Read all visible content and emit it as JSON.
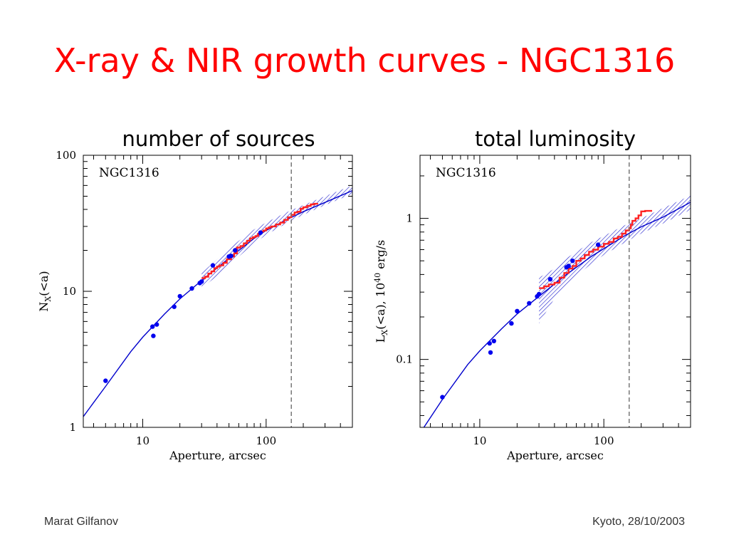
{
  "title": "X-ray & NIR growth curves - NGC1316",
  "footer": {
    "author": "Marat Gilfanov",
    "venue_date": "Kyoto, 28/10/2003"
  },
  "chart_data": [
    {
      "type": "scatter",
      "title": "number of sources",
      "annotation": "NGC1316",
      "xlabel": "Aperture, arcsec",
      "ylabel": "N",
      "ylabel_sub": "X",
      "ylabel_tail": "(<a)",
      "x_scale": "log",
      "y_scale": "log",
      "xlim": [
        3.3,
        500
      ],
      "ylim": [
        1,
        100
      ],
      "xticks": [
        10,
        100
      ],
      "xtick_labels": [
        "10",
        "100"
      ],
      "yticks": [
        1,
        10,
        100
      ],
      "ytick_labels": [
        "1",
        "10",
        "100"
      ],
      "vline": 160,
      "colors": {
        "points": "#0000ee",
        "model": "#0000cc",
        "step": "#ff2222",
        "band": "#1a1acc",
        "vline": "#777777"
      },
      "points": [
        [
          5,
          2.2
        ],
        [
          12,
          5.5
        ],
        [
          12.2,
          4.7
        ],
        [
          13,
          5.7
        ],
        [
          18,
          7.7
        ],
        [
          20,
          9.2
        ],
        [
          25,
          10.5
        ],
        [
          29,
          11.5
        ],
        [
          30,
          11.8
        ],
        [
          37,
          15.5
        ],
        [
          50,
          18
        ],
        [
          52,
          18.2
        ],
        [
          56,
          20
        ],
        [
          90,
          27
        ]
      ],
      "model_curve": {
        "x": [
          3.3,
          5,
          8,
          10,
          15,
          20,
          30,
          50,
          80,
          100,
          150,
          200,
          300,
          500
        ],
        "y": [
          1.2,
          2.0,
          3.6,
          4.6,
          6.8,
          8.8,
          12,
          17.5,
          24.5,
          28,
          34,
          38.5,
          45,
          55
        ]
      },
      "step_curve": {
        "x": [
          30,
          32,
          34,
          36,
          38,
          40,
          42,
          45,
          48,
          52,
          55,
          58,
          62,
          66,
          70,
          74,
          78,
          82,
          86,
          90,
          95,
          100,
          105,
          110,
          120,
          130,
          140,
          150,
          160,
          170,
          180,
          190,
          200,
          215,
          230,
          245,
          260
        ],
        "y": [
          12.5,
          12.8,
          13.5,
          14.0,
          14.8,
          15.2,
          15.5,
          16.2,
          17.2,
          18.0,
          19.0,
          21.0,
          21.5,
          22.5,
          23.5,
          24.5,
          25.0,
          25.5,
          26.5,
          27.5,
          28.0,
          29.0,
          29.5,
          30.0,
          31.0,
          32.0,
          33.5,
          35.0,
          36.5,
          38.0,
          38.5,
          40.5,
          41.5,
          42.5,
          43.5,
          44.0,
          44.5
        ]
      },
      "band": {
        "x": [
          30,
          40,
          50,
          60,
          80,
          100,
          150,
          200,
          300,
          500
        ],
        "y_lo": [
          10.5,
          13,
          15.5,
          18,
          22.5,
          26,
          32,
          36.5,
          43,
          52
        ],
        "y_hi": [
          13.6,
          17.2,
          20.5,
          23.5,
          28.5,
          32,
          38.5,
          43,
          50,
          60
        ]
      }
    },
    {
      "type": "scatter",
      "title": "total luminosity",
      "annotation": "NGC1316",
      "xlabel": "Aperture, arcsec",
      "ylabel": "L",
      "ylabel_sub": "X",
      "ylabel_tail": "(<a), 10",
      "ylabel_sup": "40",
      "ylabel_units": " erg/s",
      "x_scale": "log",
      "y_scale": "log",
      "xlim": [
        3.3,
        500
      ],
      "ylim": [
        0.033,
        2.8
      ],
      "xticks": [
        10,
        100
      ],
      "xtick_labels": [
        "10",
        "100"
      ],
      "yticks": [
        0.1,
        1
      ],
      "ytick_labels": [
        "0.1",
        "1"
      ],
      "vline": 160,
      "colors": {
        "points": "#0000ee",
        "model": "#0000cc",
        "step": "#ff2222",
        "band": "#1a1acc",
        "vline": "#777777"
      },
      "points": [
        [
          5,
          0.054
        ],
        [
          12,
          0.13
        ],
        [
          12.2,
          0.112
        ],
        [
          13,
          0.135
        ],
        [
          18,
          0.18
        ],
        [
          20,
          0.22
        ],
        [
          25,
          0.25
        ],
        [
          29,
          0.28
        ],
        [
          30,
          0.29
        ],
        [
          37,
          0.37
        ],
        [
          50,
          0.45
        ],
        [
          52,
          0.46
        ],
        [
          56,
          0.5
        ],
        [
          90,
          0.65
        ]
      ],
      "model_curve": {
        "x": [
          3.3,
          5,
          8,
          10,
          15,
          20,
          30,
          50,
          80,
          100,
          150,
          200,
          300,
          500
        ],
        "y": [
          0.03,
          0.052,
          0.092,
          0.115,
          0.165,
          0.21,
          0.28,
          0.4,
          0.54,
          0.61,
          0.76,
          0.87,
          1.02,
          1.3
        ]
      },
      "step_curve": {
        "x": [
          30,
          33,
          36,
          40,
          44,
          48,
          52,
          56,
          60,
          65,
          70,
          76,
          82,
          90,
          100,
          110,
          120,
          130,
          140,
          150,
          160,
          165,
          170,
          180,
          190,
          200,
          215,
          230,
          245
        ],
        "y": [
          0.32,
          0.33,
          0.34,
          0.35,
          0.38,
          0.41,
          0.44,
          0.46,
          0.5,
          0.52,
          0.55,
          0.58,
          0.6,
          0.63,
          0.66,
          0.68,
          0.72,
          0.74,
          0.78,
          0.82,
          0.85,
          0.9,
          0.96,
          1.0,
          1.05,
          1.12,
          1.13,
          1.13,
          1.13
        ]
      },
      "band": {
        "x": [
          30,
          40,
          50,
          60,
          80,
          100,
          150,
          200,
          300,
          500
        ],
        "y_lo": [
          0.18,
          0.27,
          0.34,
          0.39,
          0.48,
          0.55,
          0.68,
          0.78,
          0.92,
          1.15
        ],
        "y_hi": [
          0.38,
          0.44,
          0.52,
          0.58,
          0.68,
          0.75,
          0.9,
          1.0,
          1.18,
          1.45
        ]
      }
    }
  ]
}
